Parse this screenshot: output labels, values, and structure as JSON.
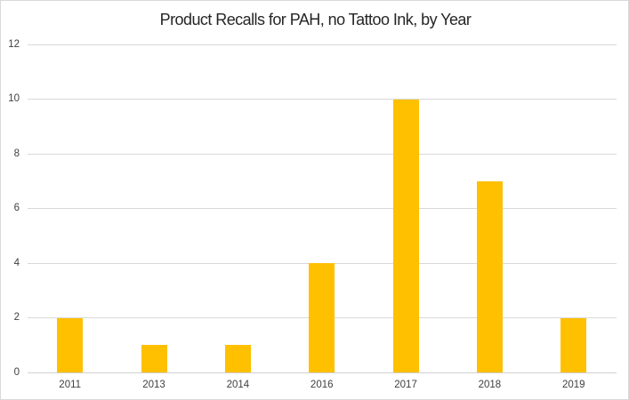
{
  "chart_data": {
    "type": "bar",
    "title": "Product Recalls for PAH, no Tattoo Ink, by Year",
    "categories": [
      "2011",
      "2013",
      "2014",
      "2016",
      "2017",
      "2018",
      "2019"
    ],
    "values": [
      2,
      1,
      1,
      4,
      10,
      7,
      2
    ],
    "xlabel": "",
    "ylabel": "",
    "ylim": [
      0,
      12
    ],
    "y_ticks": [
      0,
      2,
      4,
      6,
      8,
      10,
      12
    ],
    "grid": true,
    "legend": false,
    "colors": {
      "bar_fill": "#FFC000",
      "gridline": "#D9D9D9",
      "axis_line": "#D0D0D0",
      "tick_label": "#404040",
      "title": "#262626",
      "chart_border": "#D9D9D9",
      "background": "#FFFFFF"
    }
  }
}
